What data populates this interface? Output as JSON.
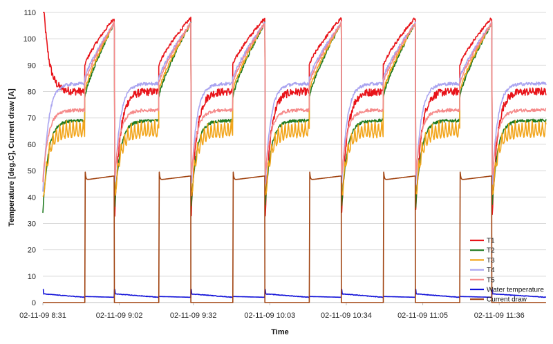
{
  "chart_data": {
    "type": "line",
    "title": "",
    "xlabel": "Time",
    "ylabel": "Temperature [deg.C], Current draw [A]",
    "ylim": [
      0,
      110
    ],
    "yticks": [
      0,
      10,
      20,
      30,
      40,
      50,
      60,
      70,
      80,
      90,
      100,
      110
    ],
    "xlim": [
      "02-11-09 8:31",
      "02-11-09 11:55"
    ],
    "xticks": [
      "02-11-09 8:31",
      "02-11-09 9:02",
      "02-11-09 9:32",
      "02-11-09 10:03",
      "02-11-09 10:34",
      "02-11-09 11:05",
      "02-11-09 11:36"
    ],
    "grid": "horizontal",
    "legend_position": "bottom-right",
    "cycle_period_minutes": 30.5,
    "cycles": [
      {
        "on_start": "8:31",
        "off_end": "8:48",
        "heat_start": "8:48",
        "heat_end": "9:00"
      },
      {
        "on_start": "9:00",
        "off_end": "9:18",
        "heat_start": "9:18",
        "heat_end": "9:31"
      },
      {
        "on_start": "9:31",
        "off_end": "9:48",
        "heat_start": "9:48",
        "heat_end": "10:01"
      },
      {
        "on_start": "10:01",
        "off_end": "10:19",
        "heat_start": "10:19",
        "heat_end": "10:32"
      },
      {
        "on_start": "10:32",
        "off_end": "10:49",
        "heat_start": "10:49",
        "heat_end": "11:02"
      },
      {
        "on_start": "11:02",
        "off_end": "11:20",
        "heat_start": "11:20",
        "heat_end": "11:33"
      },
      {
        "on_start": "11:33",
        "off_end": "11:55",
        "heat_start": "",
        "heat_end": ""
      }
    ],
    "series": [
      {
        "name": "T1",
        "color": "#e8141a",
        "peak": 108,
        "idle_level": 80,
        "heat_start_level": 90
      },
      {
        "name": "T2",
        "color": "#1f7a1f",
        "peak": 106,
        "idle_level": 69,
        "heat_start_level": 78
      },
      {
        "name": "T3",
        "color": "#f2a51b",
        "peak": 106,
        "idle_level": 66,
        "heat_start_level": 80
      },
      {
        "name": "T4",
        "color": "#a9a3f0",
        "peak": 106,
        "idle_level": 83,
        "heat_start_level": 85
      },
      {
        "name": "T5",
        "color": "#f58a8a",
        "peak": 106,
        "idle_level": 73,
        "heat_start_level": 83
      },
      {
        "name": "Water temperature",
        "color": "#1010d8",
        "peak": 6,
        "idle_level": 3,
        "heat_start_level": 2
      },
      {
        "name": "Current draw",
        "color": "#a0420f",
        "peak": 53,
        "idle_level": 0,
        "heat_start_level": 48
      }
    ]
  }
}
